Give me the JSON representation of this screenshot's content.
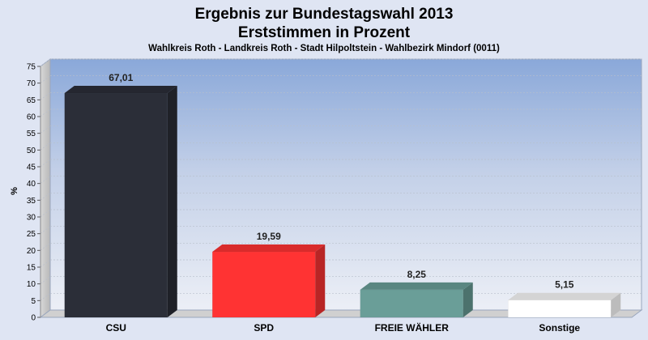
{
  "chart_data": {
    "type": "bar",
    "title": "Ergebnis zur Bundestagswahl 2013",
    "subtitle": "Erststimmen in Prozent",
    "caption": "Wahlkreis Roth - Landkreis Roth - Stadt Hilpoltstein - Wahlbezirk Mindorf (0011)",
    "ylabel": "%",
    "ylim": [
      0,
      75
    ],
    "ytick_step": 5,
    "categories": [
      "CSU",
      "SPD",
      "FREIE WÄHLER",
      "Sonstige"
    ],
    "values": [
      67.01,
      19.59,
      8.25,
      5.15
    ],
    "value_labels": [
      "67,01",
      "19,59",
      "8,25",
      "5,15"
    ],
    "colors": [
      "#2b2e38",
      "#ff3333",
      "#6a9e98",
      "#ffffff"
    ],
    "grid": true
  }
}
